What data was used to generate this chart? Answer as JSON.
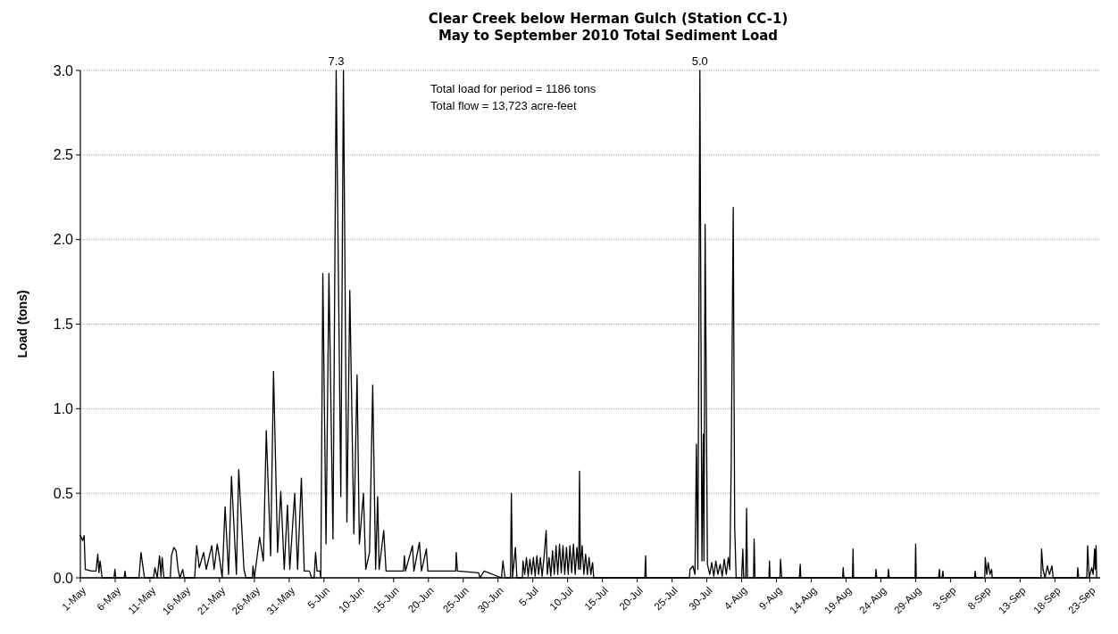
{
  "chart_data": {
    "type": "line",
    "title": "Clear Creek below Herman Gulch (Station CC-1)",
    "subtitle": "May to September 2010 Total Sediment Load",
    "ylabel": "Load (tons)",
    "annotations": [
      "Total load for period = 1186 tons",
      "Total flow = 13,723 acre-feet",
      {
        "text": "7.3",
        "x": "2010-06-06T18:00",
        "y": 3.0
      },
      {
        "text": "5.0",
        "x": "2010-07-29T00:00",
        "y": 3.0
      }
    ],
    "xlim": [
      "2010-05-01",
      "2010-09-24T12:00"
    ],
    "xticks": [
      {
        "value": "2010-05-01",
        "label": "1-May"
      },
      {
        "value": "2010-05-06",
        "label": "6-May"
      },
      {
        "value": "2010-05-11",
        "label": "11-May"
      },
      {
        "value": "2010-05-16",
        "label": "16-May"
      },
      {
        "value": "2010-05-21",
        "label": "21-May"
      },
      {
        "value": "2010-05-26",
        "label": "26-May"
      },
      {
        "value": "2010-05-31",
        "label": "31-May"
      },
      {
        "value": "2010-06-05",
        "label": "5-Jun"
      },
      {
        "value": "2010-06-10",
        "label": "10-Jun"
      },
      {
        "value": "2010-06-15",
        "label": "15-Jun"
      },
      {
        "value": "2010-06-20",
        "label": "20-Jun"
      },
      {
        "value": "2010-06-25",
        "label": "25-Jun"
      },
      {
        "value": "2010-06-30",
        "label": "30-Jun"
      },
      {
        "value": "2010-07-05",
        "label": "5-Jul"
      },
      {
        "value": "2010-07-10",
        "label": "10-Jul"
      },
      {
        "value": "2010-07-15",
        "label": "15-Jul"
      },
      {
        "value": "2010-07-20",
        "label": "20-Jul"
      },
      {
        "value": "2010-07-25",
        "label": "25-Jul"
      },
      {
        "value": "2010-07-30",
        "label": "30-Jul"
      },
      {
        "value": "2010-08-04",
        "label": "4-Aug"
      },
      {
        "value": "2010-08-09",
        "label": "9-Aug"
      },
      {
        "value": "2010-08-14",
        "label": "14-Aug"
      },
      {
        "value": "2010-08-19",
        "label": "19-Aug"
      },
      {
        "value": "2010-08-24",
        "label": "24-Aug"
      },
      {
        "value": "2010-08-29",
        "label": "29-Aug"
      },
      {
        "value": "2010-09-03",
        "label": "3-Sep"
      },
      {
        "value": "2010-09-08",
        "label": "8-Sep"
      },
      {
        "value": "2010-09-13",
        "label": "13-Sep"
      },
      {
        "value": "2010-09-18",
        "label": "18-Sep"
      },
      {
        "value": "2010-09-23",
        "label": "23-Sep"
      }
    ],
    "ylim": [
      0,
      3
    ],
    "yticks": [
      {
        "value": 0,
        "label": "0.0"
      },
      0.5,
      {
        "value": 1,
        "label": "1.0"
      },
      1.5,
      {
        "value": 2,
        "label": "2.0"
      },
      2.5,
      {
        "value": 3,
        "label": "3.0"
      }
    ],
    "grid": "y",
    "line_style": "solid",
    "series": [
      {
        "color": "#000000",
        "x": [
          "2010-05-01T00:00",
          "2010-05-01T08:00",
          "2010-05-01T13:00",
          "2010-05-01T17:00",
          "2010-05-02T15:00",
          "2010-05-03T06:00",
          "2010-05-03T12:00",
          "2010-05-03T16:00",
          "2010-05-03T20:00",
          "2010-05-04T03:00",
          "2010-05-05T20:00",
          "2010-05-05T23:00",
          "2010-05-06T02:00",
          "2010-05-07T07:00",
          "2010-05-07T10:00",
          "2010-05-07T13:00",
          "2010-05-09T10:00",
          "2010-05-09T17:00",
          "2010-05-10T05:00",
          "2010-05-11T12:00",
          "2010-05-11T17:00",
          "2010-05-12T01:00",
          "2010-05-12T09:00",
          "2010-05-12T14:00",
          "2010-05-12T18:00",
          "2010-05-13T00:00",
          "2010-05-13T22:00",
          "2010-05-14T02:00",
          "2010-05-14T10:00",
          "2010-05-14T18:00",
          "2010-05-15T01:00",
          "2010-05-15T07:00",
          "2010-05-15T17:00",
          "2010-05-15T22:00",
          "2010-05-17T10:00",
          "2010-05-17T17:00",
          "2010-05-18T02:00",
          "2010-05-18T17:00",
          "2010-05-19T02:00",
          "2010-05-19T21:00",
          "2010-05-20T05:00",
          "2010-05-20T16:00",
          "2010-05-21T01:00",
          "2010-05-21T09:00",
          "2010-05-21T19:00",
          "2010-05-22T07:00",
          "2010-05-22T17:00",
          "2010-05-23T10:00",
          "2010-05-23T18:00",
          "2010-05-24T12:00",
          "2010-05-24T19:00",
          "2010-05-25T17:00",
          "2010-05-25T19:00",
          "2010-05-26T00:00",
          "2010-05-26T18:00",
          "2010-05-27T07:00",
          "2010-05-27T17:00",
          "2010-05-28T08:00",
          "2010-05-28T18:00",
          "2010-05-29T08:00",
          "2010-05-29T19:00",
          "2010-05-30T07:00",
          "2010-05-30T18:00",
          "2010-05-31T02:00",
          "2010-05-31T19:00",
          "2010-06-01T05:00",
          "2010-06-01T18:00",
          "2010-06-02T04:00",
          "2010-06-02T22:00",
          "2010-06-03T05:00",
          "2010-06-03T14:00",
          "2010-06-03T19:00",
          "2010-06-04T00:00",
          "2010-06-04T10:00",
          "2010-06-04T13:00",
          "2010-06-04T20:00",
          "2010-06-05T07:00",
          "2010-06-05T17:00",
          "2010-06-06T07:00",
          "2010-06-06T18:00",
          "2010-06-07T10:00",
          "2010-06-07T19:00",
          "2010-06-08T07:00",
          "2010-06-08T17:00",
          "2010-06-09T07:00",
          "2010-06-09T18:00",
          "2010-06-10T02:00",
          "2010-06-10T16:00",
          "2010-06-11T00:00",
          "2010-06-11T13:00",
          "2010-06-12T00:00",
          "2010-06-12T10:00",
          "2010-06-12T17:00",
          "2010-06-12T22:00",
          "2010-06-13T14:00",
          "2010-06-13T22:00",
          "2010-06-16T10:00",
          "2010-06-16T13:00",
          "2010-06-16T17:00",
          "2010-06-17T17:00",
          "2010-06-17T22:00",
          "2010-06-18T17:00",
          "2010-06-19T00:00",
          "2010-06-19T17:00",
          "2010-06-19T22:00",
          "2010-06-23T22:00",
          "2010-06-24T00:00",
          "2010-06-24T04:00",
          "2010-06-27T05:00",
          "2010-06-27T10:00",
          "2010-06-28T00:00",
          "2010-06-30T12:00",
          "2010-06-30T17:00",
          "2010-07-01T00:00",
          "2010-07-01T19:00",
          "2010-07-01T22:00",
          "2010-07-02T02:00",
          "2010-07-02T12:00",
          "2010-07-02T17:00",
          "2010-07-03T12:00",
          "2010-07-03T14:00",
          "2010-07-03T20:00",
          "2010-07-04T02:00",
          "2010-07-04T08:00",
          "2010-07-04T14:00",
          "2010-07-04T20:00",
          "2010-07-05T02:00",
          "2010-07-05T08:00",
          "2010-07-05T14:00",
          "2010-07-05T20:00",
          "2010-07-06T02:00",
          "2010-07-06T08:00",
          "2010-07-06T14:00",
          "2010-07-06T22:00",
          "2010-07-07T02:00",
          "2010-07-07T08:00",
          "2010-07-07T14:00",
          "2010-07-07T20:00",
          "2010-07-08T02:00",
          "2010-07-08T08:00",
          "2010-07-08T14:00",
          "2010-07-08T20:00",
          "2010-07-09T02:00",
          "2010-07-09T08:00",
          "2010-07-09T14:00",
          "2010-07-09T20:00",
          "2010-07-10T02:00",
          "2010-07-10T08:00",
          "2010-07-10T14:00",
          "2010-07-10T20:00",
          "2010-07-11T02:00",
          "2010-07-11T08:00",
          "2010-07-11T14:00",
          "2010-07-11T17:00",
          "2010-07-11T20:00",
          "2010-07-12T02:00",
          "2010-07-12T08:00",
          "2010-07-12T14:00",
          "2010-07-12T20:00",
          "2010-07-13T02:00",
          "2010-07-13T08:00",
          "2010-07-13T14:00",
          "2010-07-13T18:00",
          "2010-07-21T02:00",
          "2010-07-21T05:00",
          "2010-07-21T07:00",
          "2010-07-27T12:00",
          "2010-07-27T14:00",
          "2010-07-28T00:00",
          "2010-07-28T07:00",
          "2010-07-28T12:00",
          "2010-07-28T17:00",
          "2010-07-29T00:00",
          "2010-07-29T07:00",
          "2010-07-29T12:00",
          "2010-07-29T14:00",
          "2010-07-29T18:00",
          "2010-07-29T22:00",
          "2010-07-30T02:00",
          "2010-07-30T10:00",
          "2010-07-30T17:00",
          "2010-07-31T00:00",
          "2010-07-31T07:00",
          "2010-07-31T14:00",
          "2010-07-31T22:00",
          "2010-08-01T05:00",
          "2010-08-01T12:00",
          "2010-08-01T19:00",
          "2010-08-02T02:00",
          "2010-08-02T07:00",
          "2010-08-02T12:00",
          "2010-08-02T19:00",
          "2010-08-03T00:00",
          "2010-08-03T05:00",
          "2010-08-04T00:00",
          "2010-08-04T04:00",
          "2010-08-04T07:00",
          "2010-08-04T14:00",
          "2010-08-04T17:00",
          "2010-08-04T20:00",
          "2010-08-05T17:00",
          "2010-08-05T19:00",
          "2010-08-05T22:00",
          "2010-08-07T22:00",
          "2010-08-08T00:00",
          "2010-08-08T02:00",
          "2010-08-09T12:00",
          "2010-08-09T14:00",
          "2010-08-09T18:00",
          "2010-08-12T07:00",
          "2010-08-12T10:00",
          "2010-08-12T12:00",
          "2010-08-18T12:00",
          "2010-08-18T14:00",
          "2010-08-18T17:00",
          "2010-08-19T22:00",
          "2010-08-20T00:00",
          "2010-08-20T02:00",
          "2010-08-23T05:00",
          "2010-08-23T07:00",
          "2010-08-23T10:00",
          "2010-08-25T00:00",
          "2010-08-25T02:00",
          "2010-08-25T05:00",
          "2010-08-28T22:00",
          "2010-08-29T00:00",
          "2010-08-29T02:00",
          "2010-09-01T07:00",
          "2010-09-01T10:00",
          "2010-09-01T12:00",
          "2010-09-01T19:00",
          "2010-09-01T22:00",
          "2010-09-02T00:00",
          "2010-09-06T11:00",
          "2010-09-06T13:00",
          "2010-09-06T16:00",
          "2010-09-07T22:00",
          "2010-09-08T00:00",
          "2010-09-08T05:00",
          "2010-09-08T10:00",
          "2010-09-08T16:00",
          "2010-09-08T22:00",
          "2010-09-09T00:00",
          "2010-09-16T00:00",
          "2010-09-16T02:00",
          "2010-09-16T07:00",
          "2010-09-16T14:00",
          "2010-09-16T22:00",
          "2010-09-17T05:00",
          "2010-09-17T14:00",
          "2010-09-17T18:00",
          "2010-09-21T05:00",
          "2010-09-21T07:00",
          "2010-09-21T10:00",
          "2010-09-22T14:00",
          "2010-09-22T17:00",
          "2010-09-22T22:00",
          "2010-09-23T07:00",
          "2010-09-23T12:00",
          "2010-09-23T17:00",
          "2010-09-23T19:00",
          "2010-09-23T22:00",
          "2010-09-24T00:00"
        ],
        "values": [
          0.25,
          0.22,
          0.25,
          0.05,
          0.04,
          0.04,
          0.14,
          0.03,
          0.1,
          0,
          0,
          0.05,
          0,
          0,
          0.04,
          0,
          0,
          0.15,
          0,
          0,
          0.06,
          0,
          0.13,
          0.01,
          0.12,
          0,
          0,
          0.13,
          0.18,
          0.16,
          0.05,
          0,
          0.05,
          0,
          0,
          0.19,
          0.06,
          0.15,
          0.05,
          0.19,
          0.05,
          0.2,
          0.1,
          0,
          0.42,
          0.02,
          0.6,
          0.02,
          0.64,
          0.05,
          0,
          0,
          0.07,
          0,
          0.24,
          0.1,
          0.87,
          0.13,
          1.22,
          0.15,
          0.51,
          0.05,
          0.43,
          0.05,
          0.5,
          0.05,
          0.59,
          0.04,
          0.04,
          0,
          0,
          0.15,
          0.04,
          0.04,
          0,
          1.8,
          0.2,
          1.8,
          0.23,
          3.0,
          0.48,
          3.0,
          0.33,
          1.7,
          0.26,
          1.2,
          0.2,
          0.5,
          0.05,
          0.15,
          1.14,
          0.05,
          0.48,
          0.05,
          0.28,
          0.04,
          0.04,
          0.13,
          0.04,
          0.19,
          0.04,
          0.21,
          0.04,
          0.17,
          0.04,
          0.04,
          0.15,
          0.04,
          0.03,
          0,
          0.04,
          0,
          0.1,
          0,
          0,
          0.5,
          0,
          0.18,
          0,
          0,
          0.1,
          0.02,
          0.12,
          0.01,
          0.11,
          0.02,
          0.12,
          0.01,
          0.13,
          0.02,
          0.12,
          0.01,
          0.11,
          0.28,
          0.02,
          0.12,
          0.01,
          0.16,
          0.02,
          0.19,
          0.02,
          0.2,
          0.03,
          0.19,
          0.02,
          0.18,
          0.02,
          0.19,
          0.03,
          0.2,
          0.02,
          0.18,
          0.05,
          0.63,
          0.05,
          0.19,
          0.02,
          0.14,
          0.02,
          0.12,
          0.02,
          0.09,
          0,
          0,
          0.13,
          0,
          0,
          0.05,
          0.07,
          0.02,
          0.79,
          0.05,
          3.0,
          0.1,
          0.85,
          0.1,
          2.09,
          1.12,
          0.08,
          0.02,
          0.09,
          0.01,
          0.1,
          0.02,
          0.08,
          0.01,
          0.11,
          0.02,
          0.12,
          0.05,
          0.67,
          2.19,
          0.3,
          0,
          0,
          0.17,
          0,
          0,
          0.41,
          0,
          0,
          0.23,
          0,
          0,
          0.1,
          0,
          0,
          0.11,
          0,
          0,
          0.08,
          0,
          0,
          0.06,
          0,
          0,
          0.17,
          0,
          0,
          0.05,
          0,
          0,
          0.05,
          0,
          0,
          0.2,
          0,
          0,
          0.05,
          0,
          0,
          0.04,
          0,
          0,
          0.04,
          0,
          0,
          0.12,
          0.02,
          0.09,
          0.02,
          0.05,
          0,
          0,
          0.17,
          0.05,
          0,
          0.07,
          0.02,
          0.07,
          0,
          0,
          0.06,
          0,
          0,
          0.19,
          0,
          0.06,
          0.02,
          0.17,
          0.05,
          0.19,
          0
        ]
      }
    ]
  }
}
